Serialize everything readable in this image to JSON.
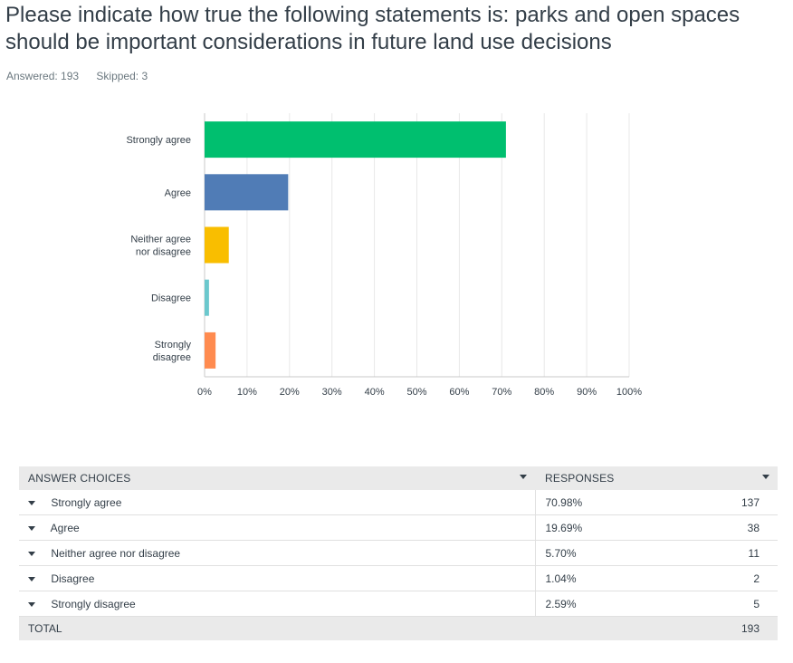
{
  "question": {
    "title": "Please indicate how true the following statements is: parks and open spaces should be important considerations in future land use decisions",
    "answered": "Answered: 193",
    "skipped": "Skipped: 3"
  },
  "chart_data": {
    "type": "bar",
    "orientation": "horizontal",
    "categories": [
      "Strongly agree",
      "Agree",
      "Neither agree nor disagree",
      "Disagree",
      "Strongly disagree"
    ],
    "category_lines": [
      [
        "Strongly agree"
      ],
      [
        "Agree"
      ],
      [
        "Neither agree",
        "nor disagree"
      ],
      [
        "Disagree"
      ],
      [
        "Strongly",
        "disagree"
      ]
    ],
    "values": [
      70.98,
      19.69,
      5.7,
      1.04,
      2.59
    ],
    "colors": [
      "#00bf6f",
      "#507cb6",
      "#f9be00",
      "#6bc8cd",
      "#ff8b4f"
    ],
    "xlim": [
      0,
      100
    ],
    "xticks": [
      0,
      10,
      20,
      30,
      40,
      50,
      60,
      70,
      80,
      90,
      100
    ],
    "xtick_labels": [
      "0%",
      "10%",
      "20%",
      "30%",
      "40%",
      "50%",
      "60%",
      "70%",
      "80%",
      "90%",
      "100%"
    ],
    "grid": true
  },
  "table": {
    "headers": {
      "choices": "ANSWER CHOICES",
      "responses": "RESPONSES"
    },
    "rows": [
      {
        "choice": "Strongly agree",
        "percent": "70.98%",
        "count": "137"
      },
      {
        "choice": "Agree",
        "percent": "19.69%",
        "count": "38"
      },
      {
        "choice": "Neither agree nor disagree",
        "percent": "5.70%",
        "count": "11"
      },
      {
        "choice": "Disagree",
        "percent": "1.04%",
        "count": "2"
      },
      {
        "choice": "Strongly disagree",
        "percent": "2.59%",
        "count": "5"
      }
    ],
    "total": {
      "label": "TOTAL",
      "count": "193"
    }
  }
}
